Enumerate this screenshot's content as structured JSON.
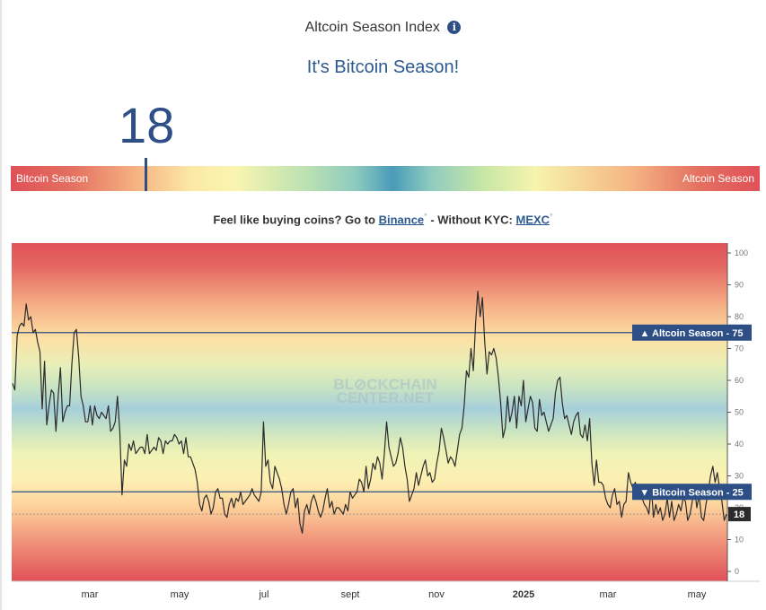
{
  "header": {
    "title": "Altcoin Season Index",
    "info_icon": "info-icon",
    "headline": "It's Bitcoin Season!",
    "value": "18"
  },
  "gauge": {
    "left_label": "Bitcoin Season",
    "right_label": "Altcoin Season",
    "value": 18
  },
  "promo": {
    "text": "Feel like buying coins? Go to",
    "link1": "Binance",
    "middle": "- Without KYC:",
    "link2": "MEXC",
    "marker": "*"
  },
  "chart_data": {
    "type": "line",
    "ylim": [
      0,
      100
    ],
    "yticks": [
      "100",
      "90",
      "80",
      "70",
      "60",
      "50",
      "40",
      "30",
      "20",
      "10",
      "0"
    ],
    "xticks": [
      "mar",
      "may",
      "jul",
      "sept",
      "nov",
      "2025",
      "mar",
      "may"
    ],
    "grid": false,
    "watermark": [
      "BL⊘CKCHAIN",
      "CENTER.NET"
    ],
    "thresholds": [
      {
        "label": "Altcoin Season",
        "value": 75,
        "arrow": "▲"
      },
      {
        "label": "Bitcoin Season",
        "value": 25,
        "arrow": "▼"
      }
    ],
    "current": {
      "label": "18",
      "value": 18
    },
    "series": [
      {
        "values": [
          59,
          57,
          74,
          77,
          78,
          77,
          84,
          79,
          80,
          75,
          76,
          72,
          69,
          51,
          66,
          46,
          52,
          57,
          56,
          44,
          55,
          64,
          47,
          50,
          52,
          52,
          65,
          75,
          76,
          67,
          55,
          52,
          47,
          47,
          52,
          46,
          52,
          49,
          48,
          50,
          49,
          48,
          52,
          44,
          45,
          47,
          55,
          44,
          24,
          35,
          33,
          40,
          38,
          41,
          37,
          38,
          39,
          39,
          37,
          43,
          37,
          38,
          39,
          38,
          42,
          41,
          37,
          41,
          40,
          41,
          41,
          43,
          42,
          40,
          41,
          37,
          42,
          36,
          36,
          34,
          32,
          28,
          21,
          19,
          23,
          24,
          22,
          18,
          20,
          25,
          26,
          23,
          23,
          18,
          17,
          21,
          23,
          20,
          23,
          22,
          25,
          21,
          22,
          23,
          24,
          26,
          24,
          23,
          22,
          25,
          47,
          33,
          35,
          28,
          26,
          33,
          31,
          29,
          26,
          21,
          18,
          21,
          25,
          26,
          20,
          23,
          15,
          12,
          19,
          21,
          18,
          22,
          24,
          22,
          19,
          17,
          19,
          23,
          26,
          20,
          22,
          18,
          20,
          20,
          19,
          18,
          21,
          19,
          25,
          23,
          24,
          25,
          29,
          28,
          25,
          33,
          26,
          29,
          34,
          32,
          36,
          34,
          29,
          37,
          47,
          39,
          36,
          33,
          34,
          37,
          42,
          39,
          33,
          29,
          22,
          24,
          26,
          31,
          27,
          30,
          33,
          35,
          30,
          31,
          28,
          29,
          34,
          38,
          45,
          42,
          38,
          34,
          36,
          35,
          33,
          38,
          43,
          45,
          52,
          63,
          61,
          70,
          63,
          78,
          88,
          80,
          86,
          72,
          62,
          69,
          68,
          70,
          67,
          61,
          53,
          42,
          45,
          55,
          47,
          50,
          55,
          45,
          55,
          52,
          60,
          47,
          51,
          55,
          53,
          45,
          44,
          54,
          49,
          50,
          47,
          44,
          46,
          48,
          56,
          60,
          61,
          53,
          48,
          49,
          46,
          43,
          47,
          49,
          50,
          43,
          42,
          46,
          41,
          48,
          34,
          27,
          35,
          28,
          28,
          27,
          23,
          21,
          20,
          24,
          26,
          21,
          22,
          17,
          21,
          22,
          31,
          28,
          26,
          28,
          26,
          25,
          23,
          21,
          20,
          18,
          27,
          17,
          21,
          18,
          20,
          16,
          18,
          23,
          17,
          22,
          16,
          18,
          21,
          19,
          23,
          22,
          16,
          18,
          22,
          26,
          20,
          24,
          17,
          16,
          21,
          25,
          30,
          33,
          28,
          31,
          26,
          22,
          16,
          18
        ]
      }
    ]
  },
  "colors": {
    "accent": "#2d4f86",
    "line": "#2b2b2b",
    "band_red": "#e05158",
    "band_yellow": "#fdf3b3",
    "band_blue": "#a9d3de"
  }
}
